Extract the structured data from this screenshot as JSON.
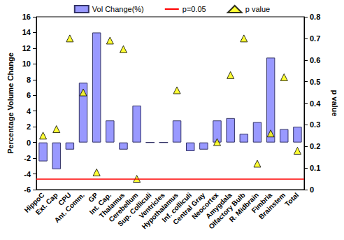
{
  "chart_data": {
    "type": "bar",
    "categories": [
      "HippoC",
      "Ext. Cap",
      "CPU",
      "Ant. Comm.",
      "GP",
      "Int. Cap.",
      "Thalamus",
      "Cerebellum",
      "Sup. Colliculi",
      "Ventricles",
      "Hypothalamus",
      "Inf. colliculi",
      "Central Gray",
      "Neocortex",
      "Amygdala",
      "Olfactory Bulb",
      "R. Midbrain",
      "Fimbria",
      "Brainstem",
      "Total"
    ],
    "series": [
      {
        "name": "Vol Change(%)",
        "type": "bar",
        "color": "#9999ff",
        "values": [
          -2.4,
          -3.4,
          -0.9,
          7.6,
          14,
          2.8,
          -0.9,
          4.7,
          0,
          0,
          2.8,
          -1.1,
          -0.9,
          2.8,
          3.1,
          1.1,
          2.6,
          10.8,
          1.7,
          2.0
        ]
      },
      {
        "name": "p=0.05",
        "type": "hline",
        "color": "#ff0000",
        "axis": "y2",
        "y": 0.05
      },
      {
        "name": "p value",
        "type": "scatter",
        "color": "#ffff00",
        "marker": "triangle",
        "axis": "y2",
        "values": [
          0.25,
          0.28,
          0.7,
          0.45,
          0.08,
          0.69,
          0.65,
          0.05,
          null,
          null,
          0.46,
          null,
          null,
          0.22,
          0.53,
          0.7,
          0.12,
          0.26,
          0.52,
          0.18
        ]
      }
    ],
    "y_label": "Percentage Volume Change",
    "y2_label": "p value",
    "ylim": [
      -6,
      16
    ],
    "yticks": [
      -6,
      -4,
      -2,
      0,
      2,
      4,
      6,
      8,
      10,
      12,
      14,
      16
    ],
    "y2lim": [
      0,
      0.8
    ],
    "y2ticks": [
      0,
      0.1,
      0.2,
      0.3,
      0.4,
      0.5,
      0.6,
      0.7,
      0.8
    ],
    "grid": false,
    "legend": "top"
  }
}
